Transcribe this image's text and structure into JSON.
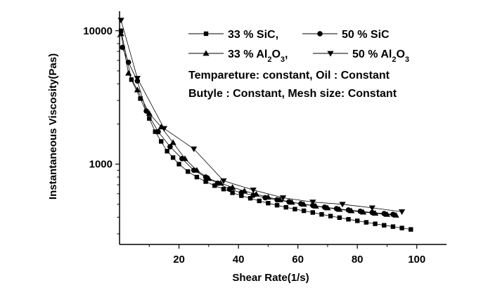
{
  "chart_data": {
    "type": "scatter",
    "xlabel": "Shear Rate(1/s)",
    "ylabel": "Instantaneous Viscosity(Pas)",
    "xlim": [
      0,
      110
    ],
    "ylim": [
      250,
      14000
    ],
    "y_scale": "log",
    "x_ticks": [
      20,
      40,
      60,
      80,
      100
    ],
    "y_ticks": [
      1000,
      10000
    ],
    "grid": false,
    "legend_placement": "top-right",
    "annotations": [
      "Tempareture: constant, Oil : Constant",
      "Butyle : Constant, Mesh size: Constant"
    ],
    "series": [
      {
        "name": "33 % SiC,",
        "legend_parts": [
          {
            "t": "33  % SiC,",
            "sub": false
          }
        ],
        "marker": "square",
        "points": [
          [
            0.5,
            10000
          ],
          [
            4,
            4300
          ],
          [
            7,
            3100
          ],
          [
            10,
            2200
          ],
          [
            12,
            1750
          ],
          [
            14,
            1480
          ],
          [
            16,
            1250
          ],
          [
            18,
            1120
          ],
          [
            20,
            1000
          ],
          [
            23,
            880
          ],
          [
            26,
            800
          ],
          [
            29,
            740
          ],
          [
            32,
            690
          ],
          [
            35,
            650
          ],
          [
            38,
            610
          ],
          [
            41,
            580
          ],
          [
            44,
            555
          ],
          [
            47,
            530
          ],
          [
            50,
            510
          ],
          [
            53,
            492
          ],
          [
            56,
            475
          ],
          [
            59,
            460
          ],
          [
            62,
            447
          ],
          [
            65,
            434
          ],
          [
            68,
            420
          ],
          [
            71,
            408
          ],
          [
            74,
            397
          ],
          [
            77,
            386
          ],
          [
            80,
            376
          ],
          [
            83,
            366
          ],
          [
            86,
            357
          ],
          [
            89,
            348
          ],
          [
            92,
            340
          ],
          [
            95,
            332
          ],
          [
            98,
            324
          ]
        ]
      },
      {
        "name": "50 % SiC",
        "legend_parts": [
          {
            "t": "50 % SiC",
            "sub": false
          }
        ],
        "marker": "circle",
        "points": [
          [
            1,
            7500
          ],
          [
            3,
            5800
          ],
          [
            6,
            4200
          ],
          [
            9,
            2500
          ],
          [
            13,
            1750
          ],
          [
            17,
            1350
          ],
          [
            21,
            1100
          ],
          [
            25,
            900
          ],
          [
            29,
            800
          ],
          [
            33,
            720
          ],
          [
            37,
            650
          ],
          [
            41,
            610
          ],
          [
            45,
            585
          ],
          [
            49,
            560
          ],
          [
            53,
            540
          ],
          [
            57,
            522
          ],
          [
            61,
            505
          ],
          [
            65,
            490
          ],
          [
            69,
            476
          ],
          [
            73,
            464
          ],
          [
            77,
            453
          ],
          [
            81,
            443
          ],
          [
            85,
            434
          ],
          [
            89,
            426
          ],
          [
            92,
            420
          ]
        ]
      },
      {
        "name": "33 % Al2O3,",
        "legend_parts": [
          {
            "t": "33  % Al",
            "sub": false
          },
          {
            "t": "2",
            "sub": true
          },
          {
            "t": "O",
            "sub": false
          },
          {
            "t": "3",
            "sub": true
          },
          {
            "t": ",",
            "sub": false
          }
        ],
        "marker": "triangle-up",
        "points": [
          [
            0.5,
            9500
          ],
          [
            3,
            4800
          ],
          [
            6,
            3600
          ],
          [
            10,
            2400
          ],
          [
            14,
            1900
          ],
          [
            18,
            1450
          ],
          [
            22,
            1100
          ],
          [
            26,
            900
          ],
          [
            30,
            780
          ],
          [
            34,
            720
          ],
          [
            38,
            670
          ],
          [
            42,
            630
          ],
          [
            46,
            595
          ],
          [
            50,
            565
          ],
          [
            54,
            540
          ],
          [
            58,
            518
          ],
          [
            62,
            500
          ],
          [
            66,
            484
          ],
          [
            70,
            470
          ],
          [
            74,
            458
          ],
          [
            78,
            447
          ],
          [
            82,
            437
          ],
          [
            86,
            428
          ],
          [
            90,
            420
          ],
          [
            93,
            414
          ]
        ]
      },
      {
        "name": "50 % Al2O3",
        "legend_parts": [
          {
            "t": "50 % Al",
            "sub": false
          },
          {
            "t": "2",
            "sub": true
          },
          {
            "t": "O",
            "sub": false
          },
          {
            "t": "3",
            "sub": true
          }
        ],
        "marker": "triangle-down",
        "points": [
          [
            0.5,
            12000
          ],
          [
            6,
            4400
          ],
          [
            15,
            1850
          ],
          [
            25,
            1300
          ],
          [
            35,
            750
          ],
          [
            45,
            640
          ],
          [
            55,
            560
          ],
          [
            65,
            520
          ],
          [
            75,
            500
          ],
          [
            85,
            470
          ],
          [
            95,
            440
          ]
        ]
      }
    ]
  }
}
